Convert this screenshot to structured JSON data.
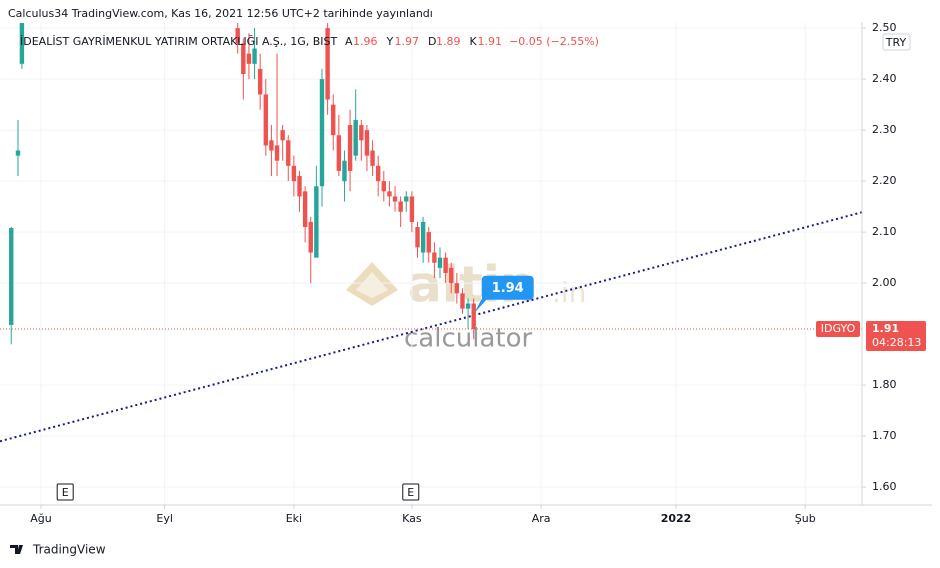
{
  "header": "Calculus34 TradingView.com, Kas 16, 2021 12:56 UTC+2 tarihinde yayınlandı",
  "footer": "TradingView",
  "watermark": {
    "brand": "altin",
    "suffix": ".in",
    "subtitle": "calculator"
  },
  "chart_data": {
    "type": "candlestick",
    "title": "İDEALİST GAYRİMENKUL YATIRIM ORTAKLIĞI A.Ş., 1G, BIST",
    "ohlc_legend": [
      {
        "label": "A",
        "value": 1.96
      },
      {
        "label": "Y",
        "value": 1.97
      },
      {
        "label": "D",
        "value": 1.89
      },
      {
        "label": "K",
        "value": 1.91
      }
    ],
    "change": "−0.05 (−2.55%)",
    "currency": "TRY",
    "up_color": "#26a69a",
    "down_color": "#ef5350",
    "x": [
      -5.3,
      -4.1,
      -3.4,
      35,
      36,
      37,
      38,
      39,
      40,
      41,
      42,
      43,
      44,
      45,
      46,
      47,
      48,
      49,
      50,
      51,
      52,
      53,
      54,
      55,
      56,
      57,
      58,
      59,
      60,
      61,
      62,
      63,
      64,
      65,
      66,
      67,
      68,
      69,
      70,
      71,
      72,
      73,
      74,
      75,
      76,
      77
    ],
    "open": [
      1.918,
      2.25,
      2.43,
      2.5,
      2.47,
      2.45,
      2.43,
      2.42,
      2.37,
      2.28,
      2.27,
      2.3,
      2.28,
      2.23,
      2.21,
      2.18,
      2.12,
      2.05,
      2.19,
      2.5,
      2.35,
      2.29,
      2.2,
      2.31,
      2.25,
      2.31,
      2.3,
      2.26,
      2.23,
      2.2,
      2.18,
      2.17,
      2.16,
      2.16,
      2.17,
      2.11,
      2.06,
      2.1,
      2.06,
      2.03,
      2.05,
      2.03,
      2.0,
      1.98,
      1.95,
      1.96
    ],
    "high": [
      2.11,
      2.32,
      2.51,
      2.51,
      2.48,
      2.49,
      2.5,
      2.45,
      2.4,
      2.31,
      2.45,
      2.31,
      2.29,
      2.25,
      2.22,
      2.19,
      2.13,
      2.23,
      2.42,
      2.51,
      2.37,
      2.33,
      2.26,
      2.34,
      2.38,
      2.32,
      2.31,
      2.28,
      2.25,
      2.22,
      2.2,
      2.19,
      2.17,
      2.18,
      2.18,
      2.12,
      2.13,
      2.11,
      2.08,
      2.07,
      2.06,
      2.04,
      2.02,
      1.99,
      1.97,
      1.97
    ],
    "low": [
      1.88,
      2.21,
      2.42,
      2.45,
      2.36,
      2.4,
      2.4,
      2.34,
      2.25,
      2.21,
      2.21,
      2.24,
      2.2,
      2.17,
      2.14,
      2.08,
      2.0,
      2.05,
      2.15,
      2.33,
      2.26,
      2.21,
      2.16,
      2.18,
      2.24,
      2.24,
      2.22,
      2.21,
      2.17,
      2.16,
      2.15,
      2.14,
      2.11,
      2.14,
      2.1,
      2.05,
      2.04,
      2.04,
      2.01,
      2.01,
      2.0,
      1.98,
      1.96,
      1.94,
      1.91,
      1.89
    ],
    "close": [
      2.108,
      2.26,
      2.51,
      2.47,
      2.41,
      2.43,
      2.46,
      2.37,
      2.27,
      2.26,
      2.24,
      2.28,
      2.23,
      2.2,
      2.17,
      2.11,
      2.06,
      2.19,
      2.4,
      2.36,
      2.29,
      2.22,
      2.24,
      2.22,
      2.32,
      2.28,
      2.25,
      2.23,
      2.2,
      2.18,
      2.17,
      2.16,
      2.14,
      2.17,
      2.12,
      2.07,
      2.12,
      2.06,
      2.04,
      2.05,
      2.02,
      2.0,
      1.98,
      1.95,
      1.96,
      1.91
    ],
    "xlim": [
      -7.3,
      146.1
    ],
    "xticks": [
      {
        "value": 0,
        "label": "Ağu"
      },
      {
        "value": 22,
        "label": "Eyl"
      },
      {
        "value": 45,
        "label": "Eki"
      },
      {
        "value": 66,
        "label": "Kas"
      },
      {
        "value": 89,
        "label": "Ara"
      },
      {
        "value": 113,
        "label": "2022"
      },
      {
        "value": 136,
        "label": "Şub"
      }
    ],
    "ylim": [
      1.565,
      2.512
    ],
    "yticks": [
      {
        "value": 1.6,
        "label": "1.60"
      },
      {
        "value": 1.7,
        "label": "1.70"
      },
      {
        "value": 1.8,
        "label": "1.80"
      },
      {
        "value": 2.0,
        "label": "2.00"
      },
      {
        "value": 2.1,
        "label": "2.10"
      },
      {
        "value": 2.2,
        "label": "2.20"
      },
      {
        "value": 2.3,
        "label": "2.30"
      },
      {
        "value": 2.4,
        "label": "2.40"
      },
      {
        "value": 2.5,
        "label": "2.50"
      }
    ],
    "grid": true,
    "trendline": {
      "x": [
        -7.3,
        146.1
      ],
      "y": [
        1.69,
        2.139
      ],
      "color": "#1a1a8c"
    },
    "price_line": {
      "symbol": "IDGYO",
      "value": 1.91,
      "countdown": "04:28:13",
      "color": "#ef5350"
    },
    "callout": {
      "x": 77,
      "value": 1.94,
      "color": "#2196f3"
    },
    "events": [
      {
        "x": 4.3,
        "label": "E"
      },
      {
        "x": 65.8,
        "label": "E"
      }
    ]
  }
}
